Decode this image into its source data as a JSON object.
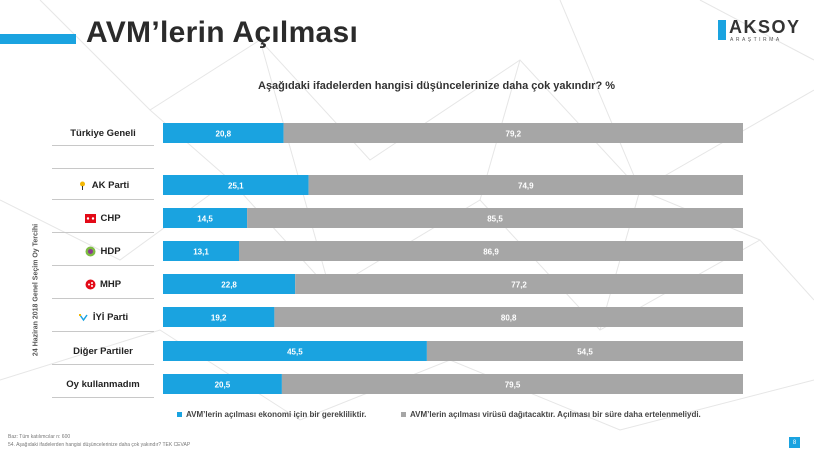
{
  "header": {
    "title": "AVM’lerin Açılması",
    "logo_text": "AKSOY",
    "logo_sub": "ARAŞTIRMA"
  },
  "question": "Aşağıdaki ifadelerden hangisi düşüncelerinize daha çok yakındır? %",
  "vertical_label": "24 Haziran 2018 Genel Seçim Oy Tercihi",
  "colors": {
    "accent": "#1aa3e0",
    "gray": "#a6a6a6"
  },
  "chart_data": {
    "type": "bar",
    "orientation": "horizontal-stacked",
    "categories": [
      "Türkiye Geneli",
      "AK Parti",
      "CHP",
      "HDP",
      "MHP",
      "İYİ Parti",
      "Diğer Partiler",
      "Oy kullanmadım"
    ],
    "series": [
      {
        "name": "AVM’lerin açılması ekonomi için bir gerekliliktir.",
        "color": "#1aa3e0",
        "values": [
          20.8,
          25.1,
          14.5,
          13.1,
          22.8,
          19.2,
          45.5,
          20.5
        ]
      },
      {
        "name": "AVM’lerin açılması virüsü dağıtacaktır. Açılması bir süre daha ertelenmeliydi.",
        "color": "#a6a6a6",
        "values": [
          79.2,
          74.9,
          85.5,
          86.9,
          77.2,
          80.8,
          54.5,
          79.5
        ]
      }
    ],
    "data_labels": [
      [
        "20,8",
        "25,1",
        "14,5",
        "13,1",
        "22,8",
        "19,2",
        "45,5",
        "20,5"
      ],
      [
        "79,2",
        "74,9",
        "85,5",
        "86,9",
        "77,2",
        "80,8",
        "54,5",
        "79,5"
      ]
    ],
    "xlim": [
      0,
      100
    ],
    "stacked": true,
    "legend_position": "bottom"
  },
  "icons": [
    "",
    "ak-parti-logo-icon",
    "chp-logo-icon",
    "hdp-logo-icon",
    "mhp-logo-icon",
    "iyi-parti-logo-icon",
    "",
    ""
  ],
  "footnotes": {
    "base": "Baz: Tüm katılımcılar n: 600",
    "question_ref": "54. Aşağıdaki ifadelerden hangisi düşüncelerinize daha çok yakındır? TEK CEVAP"
  },
  "page_number": "8"
}
